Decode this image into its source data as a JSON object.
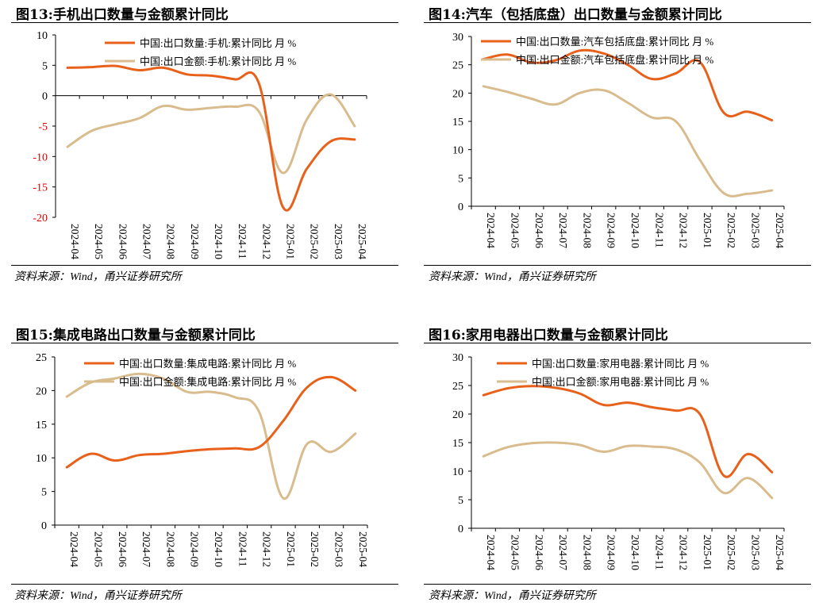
{
  "colors": {
    "series_quantity": "#E8611A",
    "series_value": "#D9BC8E",
    "axis": "#000000",
    "negative_tick": "#E00000"
  },
  "source_text": "资料来源：Wind，甬兴证券研究所",
  "months": [
    "2024-04",
    "2024-05",
    "2024-06",
    "2024-07",
    "2024-08",
    "2024-09",
    "2024-10",
    "2024-11",
    "2024-12",
    "2025-01",
    "2025-02",
    "2025-03",
    "2025-04"
  ],
  "chart_data": [
    {
      "id": "fig13",
      "type": "line",
      "title": "图13:手机出口数量与金额累计同比",
      "categories": [
        "2024-04",
        "2024-05",
        "2024-06",
        "2024-07",
        "2024-08",
        "2024-09",
        "2024-10",
        "2024-11",
        "2024-12",
        "2025-01",
        "2025-02",
        "2025-03",
        "2025-04"
      ],
      "ylim": [
        -20,
        10
      ],
      "yticks": [
        10,
        5,
        0,
        -5,
        -10,
        -15,
        -20
      ],
      "series": [
        {
          "name": "中国:出口数量:手机:累计同比 月 %",
          "values": [
            4.6,
            4.7,
            4.9,
            4.2,
            4.6,
            3.5,
            3.3,
            2.7,
            2.0,
            -18.3,
            -12.0,
            -7.5,
            -7.2
          ]
        },
        {
          "name": "中国:出口金额:手机:累计同比 月 %",
          "values": [
            -8.4,
            -5.8,
            -4.7,
            -3.7,
            -1.7,
            -2.3,
            -2.0,
            -1.8,
            -2.6,
            -12.7,
            -3.9,
            0.2,
            -5.0
          ]
        }
      ]
    },
    {
      "id": "fig14",
      "type": "line",
      "title": "图14:汽车（包括底盘）出口数量与金额累计同比",
      "categories": [
        "2024-04",
        "2024-05",
        "2024-06",
        "2024-07",
        "2024-08",
        "2024-09",
        "2024-10",
        "2024-11",
        "2024-12",
        "2025-01",
        "2025-02",
        "2025-03",
        "2025-04"
      ],
      "ylim": [
        0,
        30
      ],
      "yticks": [
        30,
        25,
        20,
        15,
        10,
        5,
        0
      ],
      "series": [
        {
          "name": "中国:出口数量:汽车包括底盘:累计同比 月 %",
          "values": [
            26.0,
            26.8,
            25.4,
            25.8,
            27.5,
            27.0,
            25.0,
            22.5,
            23.5,
            25.5,
            16.5,
            16.7,
            15.2
          ]
        },
        {
          "name": "中国:出口金额:汽车包括底盘:累计同比 月 %",
          "values": [
            21.2,
            20.2,
            19.0,
            18.0,
            20.0,
            20.5,
            18.3,
            15.7,
            15.0,
            8.2,
            2.3,
            2.2,
            2.8
          ]
        }
      ]
    },
    {
      "id": "fig15",
      "type": "line",
      "title": "图15:集成电路出口数量与金额累计同比",
      "categories": [
        "2024-04",
        "2024-05",
        "2024-06",
        "2024-07",
        "2024-08",
        "2024-09",
        "2024-10",
        "2024-11",
        "2024-12",
        "2025-01",
        "2025-02",
        "2025-03",
        "2025-04"
      ],
      "ylim": [
        0,
        25
      ],
      "yticks": [
        25,
        20,
        15,
        10,
        5,
        0
      ],
      "series": [
        {
          "name": "中国:出口数量:集成电路:累计同比 月 %",
          "values": [
            8.6,
            10.6,
            9.6,
            10.4,
            10.6,
            11.0,
            11.3,
            11.4,
            11.6,
            15.5,
            20.5,
            22.0,
            20.0
          ]
        },
        {
          "name": "中国:出口金额:集成电路:累计同比 月 %",
          "values": [
            19.1,
            21.2,
            21.8,
            22.5,
            21.8,
            19.8,
            19.8,
            19.0,
            16.8,
            4.0,
            12.1,
            10.9,
            13.6
          ]
        }
      ]
    },
    {
      "id": "fig16",
      "type": "line",
      "title": "图16:家用电器出口数量与金额累计同比",
      "categories": [
        "2024-04",
        "2024-05",
        "2024-06",
        "2024-07",
        "2024-08",
        "2024-09",
        "2024-10",
        "2024-11",
        "2024-12",
        "2025-01",
        "2025-02",
        "2025-03",
        "2025-04"
      ],
      "ylim": [
        0,
        30
      ],
      "yticks": [
        30,
        25,
        20,
        15,
        10,
        5,
        0
      ],
      "series": [
        {
          "name": "中国:出口数量:家用电器:累计同比 月 %",
          "values": [
            23.3,
            24.5,
            24.9,
            24.6,
            23.6,
            21.6,
            22.0,
            21.2,
            20.6,
            20.0,
            9.2,
            13.0,
            9.8
          ]
        },
        {
          "name": "中国:出口金额:家用电器:累计同比 月 %",
          "values": [
            12.6,
            14.2,
            14.9,
            15.0,
            14.6,
            13.4,
            14.4,
            14.3,
            13.8,
            11.5,
            6.2,
            8.8,
            5.3
          ]
        }
      ]
    }
  ]
}
